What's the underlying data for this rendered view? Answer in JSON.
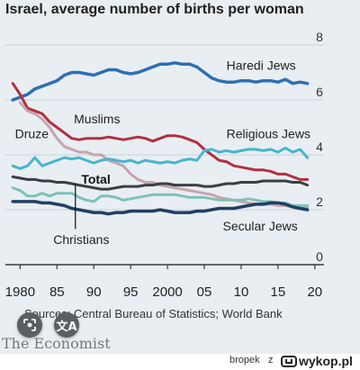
{
  "chart_data": {
    "type": "line",
    "title": "Israel, average number of births per woman",
    "xlabel": "",
    "ylabel": "",
    "xlim": [
      1978,
      2021
    ],
    "ylim": [
      0,
      8
    ],
    "x_ticks": [
      1980,
      1985,
      1990,
      1995,
      2000,
      2005,
      2010,
      2015,
      2020
    ],
    "x_tick_labels": [
      "1980",
      "85",
      "90",
      "95",
      "2000",
      "05",
      "10",
      "15",
      "20"
    ],
    "y_ticks": [
      0,
      2,
      4,
      6,
      8
    ],
    "y_tick_labels": [
      "0",
      "2",
      "4",
      "6",
      "8"
    ],
    "grid": "horizontal",
    "series": [
      {
        "name": "Haredi Jews",
        "color": "#2e6fb3",
        "width": 3.5,
        "x": [
          1979,
          1980,
          1981,
          1982,
          1983,
          1984,
          1985,
          1986,
          1987,
          1988,
          1989,
          1990,
          1991,
          1992,
          1993,
          1994,
          1995,
          1996,
          1997,
          1998,
          1999,
          2000,
          2001,
          2002,
          2003,
          2004,
          2005,
          2006,
          2007,
          2008,
          2009,
          2010,
          2011,
          2012,
          2013,
          2014,
          2015,
          2016,
          2017,
          2018,
          2019
        ],
        "y": [
          6.0,
          6.1,
          6.2,
          6.4,
          6.5,
          6.6,
          6.7,
          6.9,
          7.0,
          7.0,
          6.95,
          6.9,
          7.0,
          7.1,
          7.1,
          7.0,
          6.95,
          7.0,
          7.1,
          7.2,
          7.3,
          7.3,
          7.35,
          7.3,
          7.3,
          7.2,
          7.0,
          6.8,
          6.7,
          6.65,
          6.65,
          6.7,
          6.7,
          6.65,
          6.7,
          6.7,
          6.65,
          6.75,
          6.6,
          6.65,
          6.6
        ]
      },
      {
        "name": "Muslims",
        "color": "#b0313f",
        "width": 3,
        "x": [
          1979,
          1980,
          1981,
          1982,
          1983,
          1984,
          1985,
          1986,
          1987,
          1988,
          1989,
          1990,
          1991,
          1992,
          1993,
          1994,
          1995,
          1996,
          1997,
          1998,
          1999,
          2000,
          2001,
          2002,
          2003,
          2004,
          2005,
          2006,
          2007,
          2008,
          2009,
          2010,
          2011,
          2012,
          2013,
          2014,
          2015,
          2016,
          2017,
          2018,
          2019
        ],
        "y": [
          6.6,
          6.2,
          5.7,
          5.6,
          5.5,
          5.2,
          5.0,
          4.8,
          4.6,
          4.55,
          4.6,
          4.6,
          4.6,
          4.65,
          4.6,
          4.55,
          4.6,
          4.65,
          4.6,
          4.5,
          4.6,
          4.7,
          4.7,
          4.65,
          4.55,
          4.45,
          4.2,
          4.0,
          3.8,
          3.75,
          3.6,
          3.55,
          3.5,
          3.45,
          3.45,
          3.4,
          3.3,
          3.3,
          3.2,
          3.1,
          3.1
        ]
      },
      {
        "name": "Druze",
        "color": "#c5a4ae",
        "width": 3,
        "x": [
          1980,
          1981,
          1982,
          1983,
          1984,
          1985,
          1986,
          1987,
          1988,
          1989,
          1990,
          1991,
          1992,
          1993,
          1994,
          1995,
          1996,
          1997,
          1998,
          1999,
          2000,
          2001,
          2002,
          2003,
          2004,
          2005,
          2006,
          2007,
          2008,
          2009,
          2010,
          2011,
          2012,
          2013,
          2014,
          2015,
          2016,
          2017,
          2018,
          2019
        ],
        "y": [
          5.9,
          5.6,
          5.5,
          5.3,
          5.0,
          4.6,
          4.3,
          4.2,
          4.1,
          4.1,
          4.0,
          4.0,
          3.8,
          3.7,
          3.6,
          3.3,
          3.1,
          3.0,
          3.0,
          2.9,
          2.85,
          2.8,
          2.75,
          2.7,
          2.65,
          2.6,
          2.55,
          2.45,
          2.4,
          2.35,
          2.3,
          2.25,
          2.2,
          2.2,
          2.2,
          2.15,
          2.15,
          2.1,
          2.05,
          2.1
        ]
      },
      {
        "name": "Religious Jews",
        "color": "#48b5cf",
        "width": 3,
        "x": [
          1979,
          1980,
          1981,
          1982,
          1983,
          1984,
          1985,
          1986,
          1987,
          1988,
          1989,
          1990,
          1991,
          1992,
          1993,
          1994,
          1995,
          1996,
          1997,
          1998,
          1999,
          2000,
          2001,
          2002,
          2003,
          2004,
          2005,
          2006,
          2007,
          2008,
          2009,
          2010,
          2011,
          2012,
          2013,
          2014,
          2015,
          2016,
          2017,
          2018,
          2019
        ],
        "y": [
          3.6,
          3.5,
          3.6,
          3.9,
          3.6,
          3.7,
          3.8,
          3.9,
          3.85,
          3.9,
          3.8,
          3.7,
          3.8,
          3.85,
          3.8,
          3.75,
          3.8,
          3.7,
          3.8,
          3.75,
          3.7,
          3.75,
          3.7,
          3.8,
          3.85,
          3.8,
          4.15,
          4.2,
          4.1,
          4.15,
          4.1,
          4.15,
          4.2,
          4.2,
          4.15,
          4.2,
          4.1,
          4.25,
          4.1,
          4.2,
          3.9
        ]
      },
      {
        "name": "Total",
        "color": "#3a3f44",
        "width": 3,
        "x": [
          1979,
          1980,
          1981,
          1982,
          1983,
          1984,
          1985,
          1986,
          1987,
          1988,
          1989,
          1990,
          1991,
          1992,
          1993,
          1994,
          1995,
          1996,
          1997,
          1998,
          1999,
          2000,
          2001,
          2002,
          2003,
          2004,
          2005,
          2006,
          2007,
          2008,
          2009,
          2010,
          2011,
          2012,
          2013,
          2014,
          2015,
          2016,
          2017,
          2018,
          2019
        ],
        "y": [
          3.2,
          3.15,
          3.1,
          3.1,
          3.05,
          3.05,
          3.0,
          3.0,
          2.95,
          2.9,
          2.85,
          2.8,
          2.75,
          2.75,
          2.8,
          2.85,
          2.85,
          2.85,
          2.9,
          2.9,
          2.95,
          2.95,
          2.9,
          2.9,
          2.9,
          2.9,
          2.85,
          2.85,
          2.9,
          2.95,
          2.95,
          3.0,
          3.0,
          3.0,
          3.05,
          3.05,
          3.05,
          3.05,
          3.0,
          3.0,
          2.9
        ]
      },
      {
        "name": "Christians",
        "color": "#7fc1b7",
        "width": 3,
        "x": [
          1979,
          1980,
          1981,
          1982,
          1983,
          1984,
          1985,
          1986,
          1987,
          1988,
          1989,
          1990,
          1991,
          1992,
          1993,
          1994,
          1995,
          1996,
          1997,
          1998,
          1999,
          2000,
          2001,
          2002,
          2003,
          2004,
          2005,
          2006,
          2007,
          2008,
          2009,
          2010,
          2011,
          2012,
          2013,
          2014,
          2015,
          2016,
          2017,
          2018,
          2019
        ],
        "y": [
          2.8,
          2.7,
          2.5,
          2.5,
          2.6,
          2.5,
          2.6,
          2.6,
          2.6,
          2.45,
          2.35,
          2.3,
          2.5,
          2.5,
          2.45,
          2.35,
          2.4,
          2.45,
          2.5,
          2.55,
          2.55,
          2.55,
          2.55,
          2.5,
          2.45,
          2.45,
          2.45,
          2.4,
          2.35,
          2.35,
          2.35,
          2.35,
          2.4,
          2.35,
          2.3,
          2.3,
          2.25,
          2.25,
          2.15,
          2.15,
          2.15
        ]
      },
      {
        "name": "Secular Jews",
        "color": "#1f3f66",
        "width": 3.5,
        "x": [
          1979,
          1980,
          1981,
          1982,
          1983,
          1984,
          1985,
          1986,
          1987,
          1988,
          1989,
          1990,
          1991,
          1992,
          1993,
          1994,
          1995,
          1996,
          1997,
          1998,
          1999,
          2000,
          2001,
          2002,
          2003,
          2004,
          2005,
          2006,
          2007,
          2008,
          2009,
          2010,
          2011,
          2012,
          2013,
          2014,
          2015,
          2016,
          2017,
          2018,
          2019
        ],
        "y": [
          2.3,
          2.3,
          2.3,
          2.3,
          2.25,
          2.25,
          2.2,
          2.15,
          2.05,
          2.0,
          1.95,
          1.9,
          1.9,
          1.85,
          1.9,
          1.9,
          1.95,
          1.95,
          1.95,
          1.95,
          2.0,
          1.95,
          1.9,
          1.9,
          1.9,
          1.95,
          1.95,
          2.0,
          2.05,
          2.05,
          2.05,
          2.1,
          2.15,
          2.2,
          2.2,
          2.25,
          2.25,
          2.2,
          2.1,
          2.05,
          2.0
        ]
      }
    ],
    "labels": [
      {
        "text": "Haredi Jews",
        "x": 2008,
        "y": 7.1,
        "color": "#222222",
        "bold": false
      },
      {
        "text": "Muslims",
        "x": 1987.3,
        "y": 5.15,
        "color": "#222222",
        "bold": false
      },
      {
        "text": "Druze",
        "x": 1979.3,
        "y": 4.6,
        "color": "#222222",
        "bold": false
      },
      {
        "text": "Religious Jews",
        "x": 2008,
        "y": 4.6,
        "color": "#222222",
        "bold": false
      },
      {
        "text": "Total",
        "x": 1988.3,
        "y": 2.95,
        "color": "#111111",
        "bold": true
      },
      {
        "text": "Christians",
        "x": 1984.5,
        "y": 0.75,
        "color": "#222222",
        "bold": false
      },
      {
        "text": "Secular Jews",
        "x": 2007.5,
        "y": 1.25,
        "color": "#222222",
        "bold": false
      }
    ],
    "annotation_line": {
      "x": 1987.5,
      "y1": 2.95,
      "y2": 1.3
    }
  },
  "source_text": "Sources: Central Bureau of Statistics; World Bank",
  "brand": "The Economist",
  "footer": {
    "user": "bropek",
    "z": "z",
    "site": "wykop.pl"
  },
  "icons": {
    "lens": "google-lens-icon",
    "translate": "translate-icon"
  }
}
